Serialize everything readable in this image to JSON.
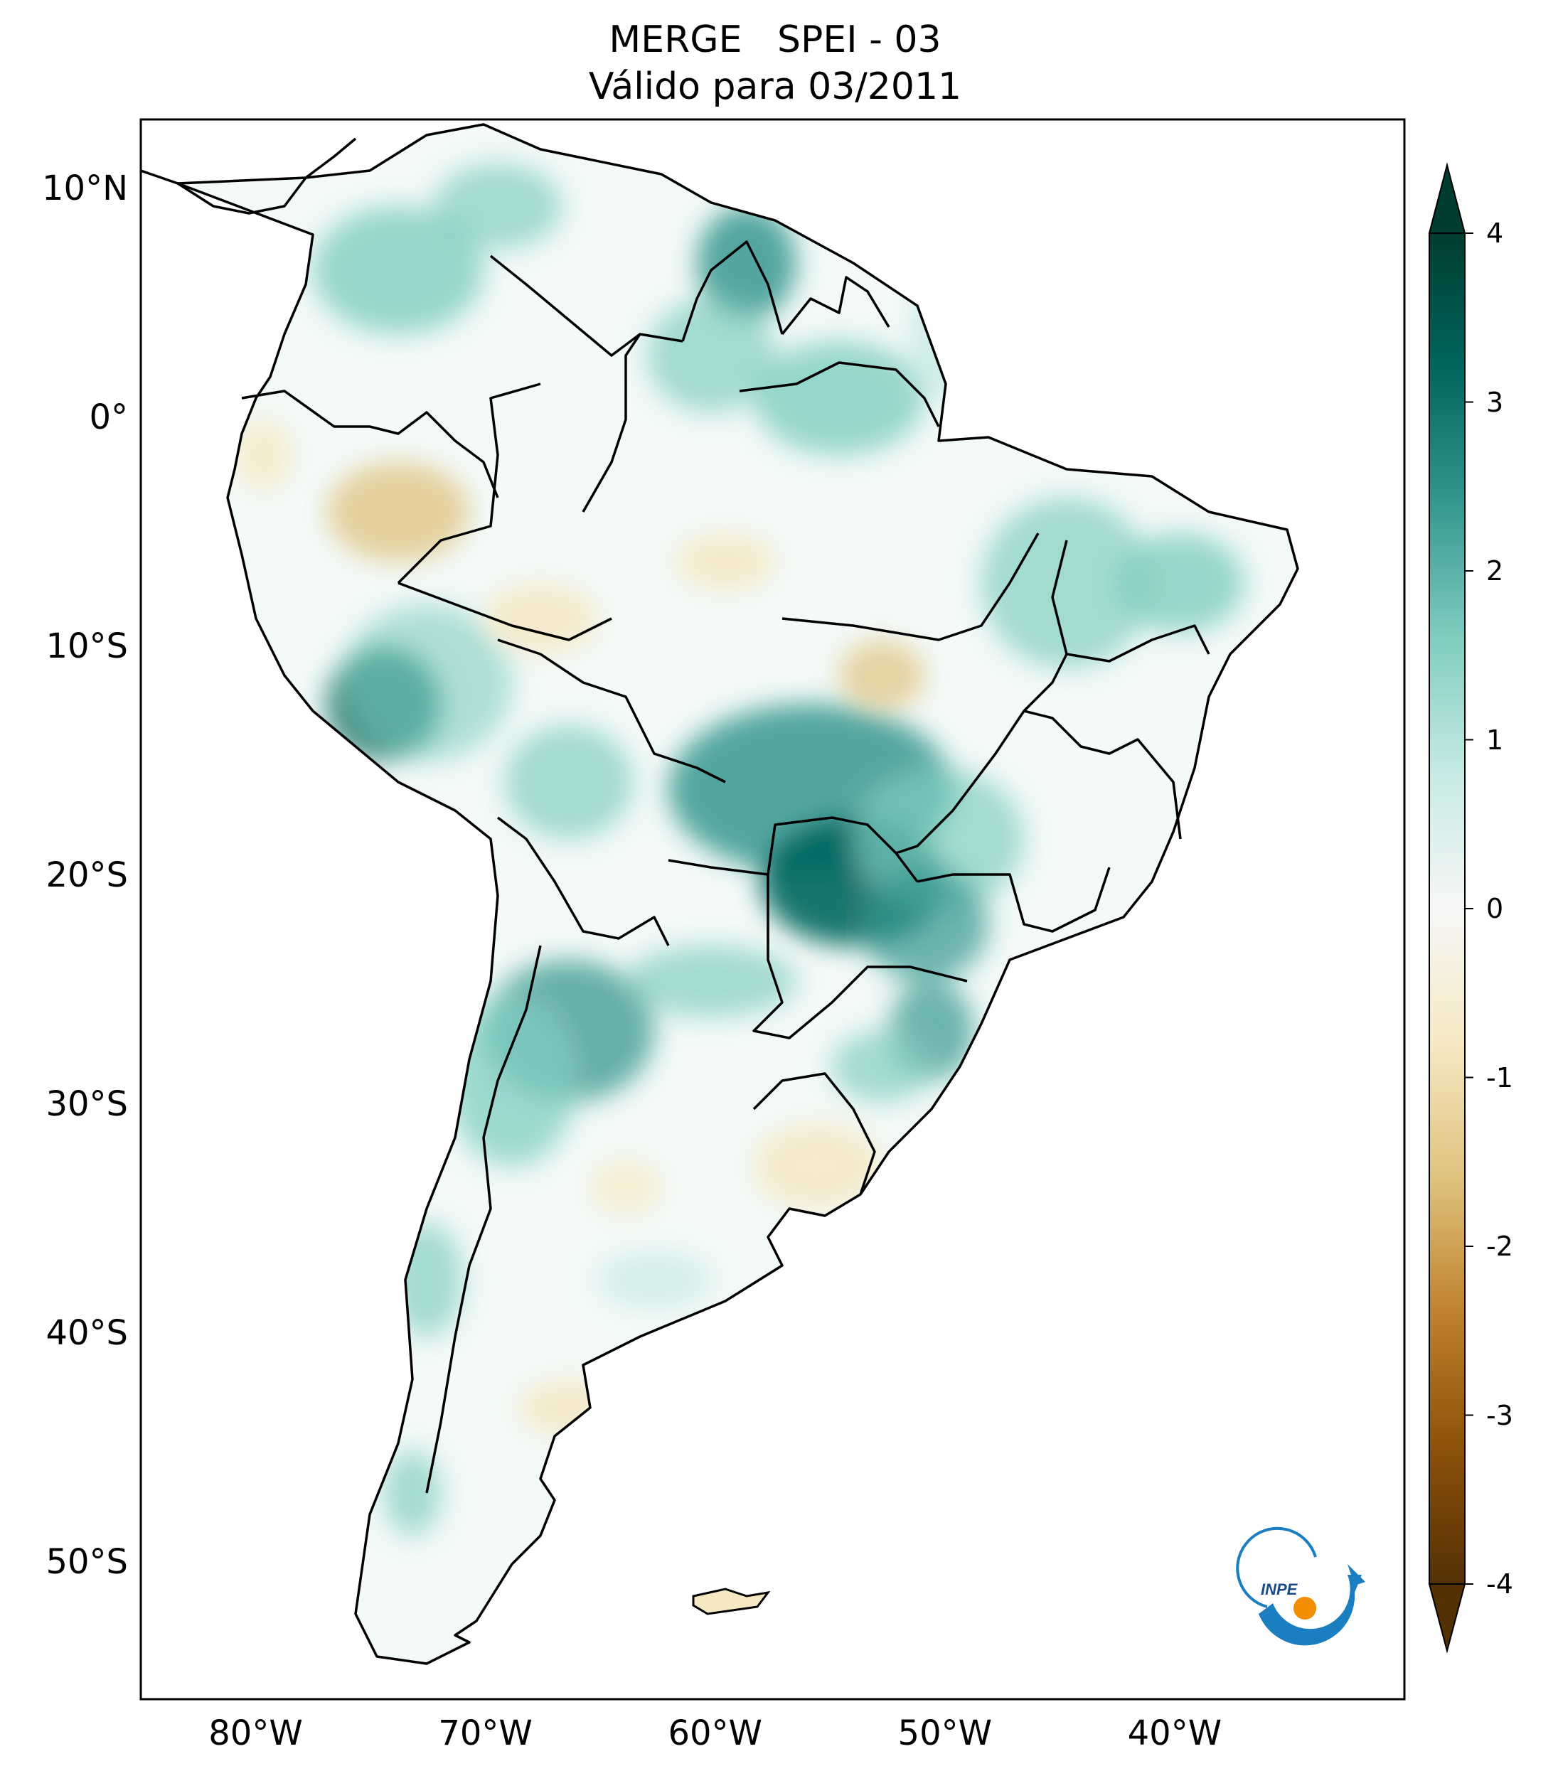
{
  "title": {
    "line1": "MERGE   SPEI - 03",
    "line2": "Válido para 03/2011"
  },
  "map": {
    "region": "South America",
    "variable": "SPEI - 03",
    "projection": "PlateCarree",
    "lon_range": [
      -85,
      -30
    ],
    "lat_range": [
      -56,
      13
    ],
    "lat_ticks": [
      {
        "value": 10,
        "label": "10°N"
      },
      {
        "value": 0,
        "label": "0°"
      },
      {
        "value": -10,
        "label": "10°S"
      },
      {
        "value": -20,
        "label": "20°S"
      },
      {
        "value": -30,
        "label": "30°S"
      },
      {
        "value": -40,
        "label": "40°S"
      },
      {
        "value": -50,
        "label": "50°S"
      }
    ],
    "lon_ticks": [
      {
        "value": -80,
        "label": "80°W"
      },
      {
        "value": -70,
        "label": "70°W"
      },
      {
        "value": -60,
        "label": "60°W"
      },
      {
        "value": -50,
        "label": "50°W"
      },
      {
        "value": -40,
        "label": "40°W"
      }
    ],
    "colors": {
      "wet_strong": "#01463a",
      "wet_mid": "#35978f",
      "wet_light": "#c7eae5",
      "neutral": "#f7f7f7",
      "dry_light": "#f6e8c3",
      "dry_mid": "#bf812d",
      "dry_strong": "#543005",
      "border": "#000000"
    },
    "logo": {
      "text": "INPE",
      "ring_color": "#1a7ec1",
      "dot_color": "#f28c00"
    }
  },
  "colorbar": {
    "min": -4,
    "max": 4,
    "extend": "both",
    "ticks": [
      {
        "value": 4,
        "label": "4"
      },
      {
        "value": 3,
        "label": "3"
      },
      {
        "value": 2,
        "label": "2"
      },
      {
        "value": 1,
        "label": "1"
      },
      {
        "value": 0,
        "label": "0"
      },
      {
        "value": -1,
        "label": "-1"
      },
      {
        "value": -2,
        "label": "-2"
      },
      {
        "value": -3,
        "label": "-3"
      },
      {
        "value": -4,
        "label": "-4"
      }
    ],
    "colormap": "BrBG",
    "stops": [
      "#543005",
      "#8c510a",
      "#bf812d",
      "#dfc27d",
      "#f6e8c3",
      "#f7f7f7",
      "#c7eae5",
      "#80cdc1",
      "#35978f",
      "#01665e",
      "#003c30"
    ]
  }
}
